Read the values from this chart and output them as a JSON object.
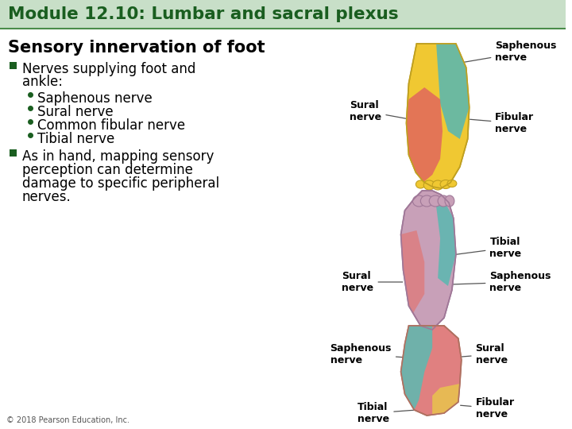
{
  "bg_color": "#ffffff",
  "title_bar_color": "#c8dfc8",
  "title_text": "Module 12.10: Lumbar and sacral plexus",
  "title_color": "#1a5e20",
  "title_fontsize": 15.5,
  "title_bold": true,
  "section_title": "Sensory innervation of foot",
  "section_color": "#000000",
  "section_fontsize": 15,
  "text_color": "#1a5e20",
  "body_color": "#000000",
  "body_fontsize": 12,
  "sub_fontsize": 12,
  "sub_bullets": [
    "Saphenous nerve",
    "Sural nerve",
    "Common fibular nerve",
    "Tibial nerve"
  ],
  "bullet2": "As in hand, mapping sensory\nperception can determine\ndamage to specific peripheral\nnerves.",
  "copyright": "© 2018 Pearson Education, Inc.",
  "copy_fontsize": 7,
  "label_fontsize": 9,
  "label_bold": true,
  "label_color": "#000000",
  "yellow": "#f0c832",
  "teal": "#5ab8b0",
  "red_pink": "#e06060",
  "mauve": "#c8a0b8",
  "mauve_dark": "#b890b0",
  "pink_red": "#e07878",
  "pink_light": "#d4a0b8",
  "ankle_teal": "#60b8b0",
  "ankle_red": "#e08080",
  "ankle_yellow": "#e8c050"
}
